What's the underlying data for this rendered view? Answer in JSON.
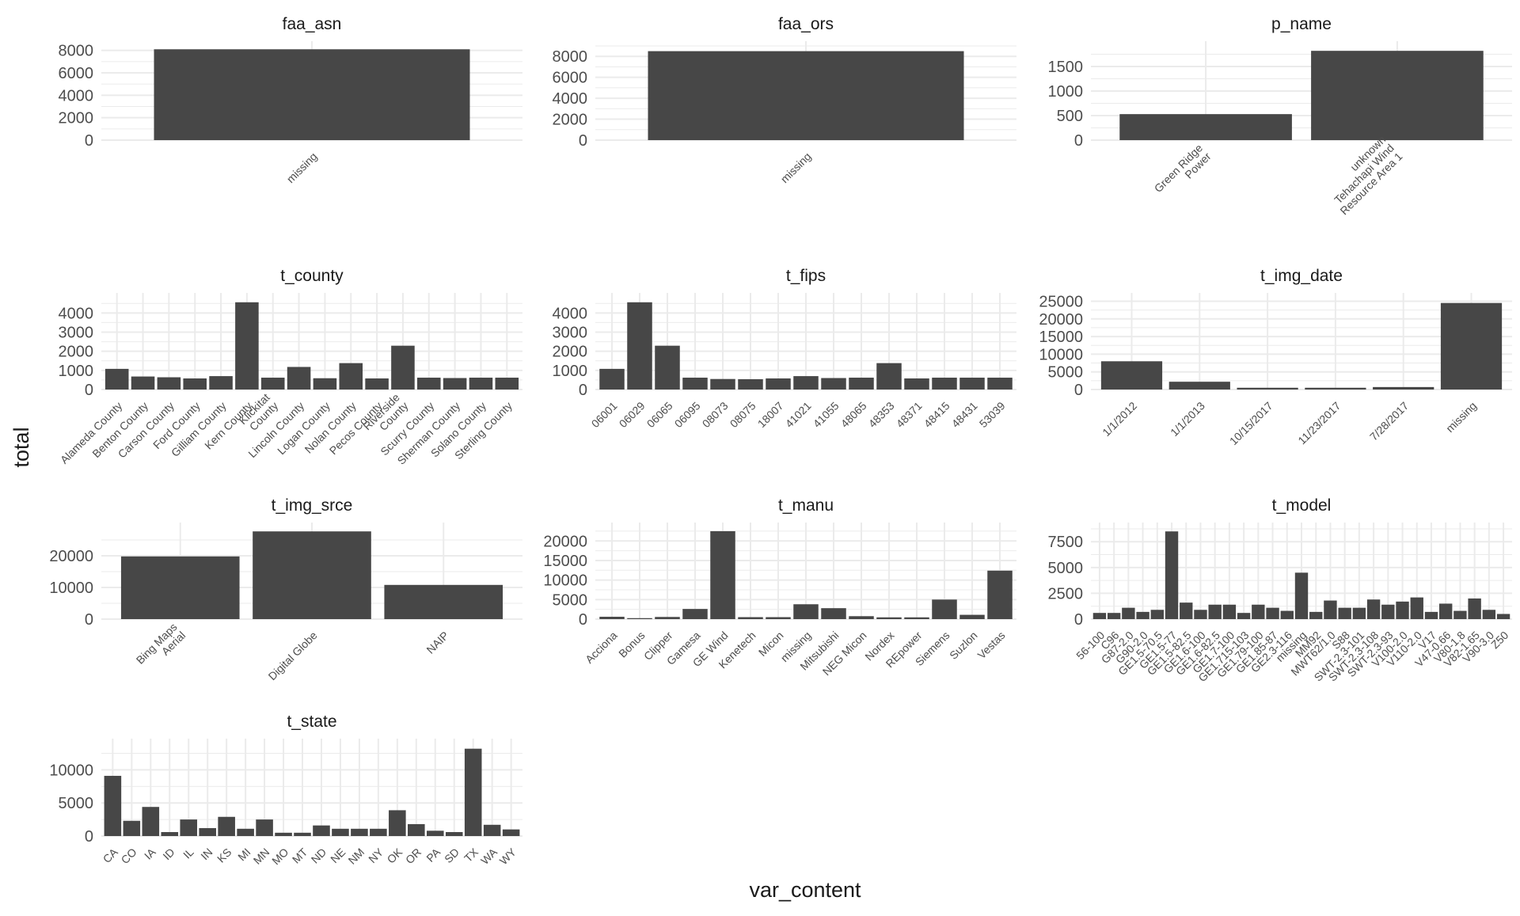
{
  "figure": {
    "xlabel": "var_content",
    "ylabel": "total",
    "bar_color": "#474747",
    "grid_color": "#ebebeb",
    "background": "#ffffff"
  },
  "chart_data": [
    {
      "type": "bar",
      "title": "faa_asn",
      "categories": [
        "missing"
      ],
      "values": [
        8100
      ],
      "ylim": [
        0,
        8400
      ],
      "yticks": [
        0,
        2000,
        4000,
        6000,
        8000
      ],
      "grid": true
    },
    {
      "type": "bar",
      "title": "faa_ors",
      "categories": [
        "missing"
      ],
      "values": [
        8500
      ],
      "ylim": [
        0,
        9000
      ],
      "yticks": [
        0,
        2000,
        4000,
        6000,
        8000
      ],
      "grid": true
    },
    {
      "type": "bar",
      "title": "p_name",
      "categories": [
        "Green Ridge\nPower",
        "unknown\nTehachapi Wind\nResource Area 1"
      ],
      "values": [
        530,
        1820
      ],
      "ylim": [
        0,
        1920
      ],
      "yticks": [
        0,
        500,
        1000,
        1500
      ],
      "grid": true
    },
    {
      "type": "bar",
      "title": "t_county",
      "categories": [
        "Alameda County",
        "Benton County",
        "Carson County",
        "Ford County",
        "Gilliam County",
        "Kern County",
        "Klickitat\nCounty",
        "Lincoln County",
        "Logan County",
        "Nolan County",
        "Pecos County",
        "Riverside\nCounty",
        "Scurry County",
        "Sherman County",
        "Solano County",
        "Sterling County"
      ],
      "values": [
        1080,
        680,
        640,
        580,
        700,
        4560,
        620,
        1180,
        590,
        1380,
        580,
        2290,
        620,
        600,
        620,
        620
      ],
      "ylim": [
        0,
        4800
      ],
      "yticks": [
        0,
        1000,
        2000,
        3000,
        4000
      ],
      "grid": true
    },
    {
      "type": "bar",
      "title": "t_fips",
      "categories": [
        "06001",
        "06029",
        "06065",
        "06095",
        "08073",
        "08075",
        "18007",
        "41021",
        "41055",
        "48065",
        "48353",
        "48371",
        "48415",
        "48431",
        "53039"
      ],
      "values": [
        1080,
        4560,
        2290,
        620,
        550,
        540,
        580,
        700,
        600,
        620,
        1380,
        580,
        620,
        620,
        620
      ],
      "ylim": [
        0,
        4800
      ],
      "yticks": [
        0,
        1000,
        2000,
        3000,
        4000
      ],
      "grid": true
    },
    {
      "type": "bar",
      "title": "t_img_date",
      "categories": [
        "1/1/2012",
        "1/1/2013",
        "10/15/2017",
        "11/23/2017",
        "7/28/2017",
        "missing"
      ],
      "values": [
        8000,
        2200,
        500,
        500,
        700,
        24500
      ],
      "ylim": [
        0,
        26000
      ],
      "yticks": [
        0,
        5000,
        10000,
        15000,
        20000,
        25000
      ],
      "grid": true
    },
    {
      "type": "bar",
      "title": "t_img_srce",
      "categories": [
        "Bing Maps\nAerial",
        "Digital Globe",
        "NAIP"
      ],
      "values": [
        19800,
        27700,
        10800
      ],
      "ylim": [
        0,
        29000
      ],
      "yticks": [
        0,
        10000,
        20000
      ],
      "grid": true
    },
    {
      "type": "bar",
      "title": "t_manu",
      "categories": [
        "Acciona",
        "Bonus",
        "Clipper",
        "Gamesa",
        "GE Wind",
        "Kenetech",
        "Micon",
        "missing",
        "Mitsubishi",
        "NEG Micon",
        "Nordex",
        "REpower",
        "Siemens",
        "Suzlon",
        "Vestas"
      ],
      "values": [
        600,
        250,
        550,
        2600,
        22500,
        500,
        500,
        3800,
        2800,
        750,
        450,
        450,
        5000,
        1100,
        12400
      ],
      "ylim": [
        0,
        23500
      ],
      "yticks": [
        0,
        5000,
        10000,
        15000,
        20000
      ],
      "grid": true
    },
    {
      "type": "bar",
      "title": "t_model",
      "categories": [
        "56-100",
        "C96",
        "G87-2.0",
        "G90-2.0",
        "GE1.5-70.5",
        "GE1.5-77",
        "GE1.5-82.5",
        "GE1.6-100",
        "GE1.6-82.5",
        "GE1.7-100",
        "GE1.715-103",
        "GE1.79-100",
        "GE1.85-87",
        "GE2.3-116",
        "missing",
        "MM92",
        "MWT62/1.0",
        "S88",
        "SWT-2.3-101",
        "SWT-2.3-108",
        "SWT-2.3-93",
        "V100-2.0",
        "V110-2.0",
        "V17",
        "V47-0.66",
        "V80-1.8",
        "V82-1.65",
        "V90-3.0",
        "Z50"
      ],
      "values": [
        600,
        600,
        1100,
        700,
        900,
        8500,
        1600,
        900,
        1400,
        1400,
        600,
        1400,
        1100,
        800,
        4500,
        700,
        1800,
        1100,
        1100,
        1900,
        1400,
        1700,
        2100,
        700,
        1500,
        800,
        2000,
        900,
        500
      ],
      "ylim": [
        0,
        8900
      ],
      "yticks": [
        0,
        2500,
        5000,
        7500
      ],
      "tick_labels_shown": [
        "56-100",
        "C96",
        "G87-2.0",
        "G90-2.0",
        "GE1.5-70.5",
        "GE1.5-77",
        "GE1.5-82.5",
        "GE1.6-100",
        "GE1.6-82.5",
        "GE1.7-100",
        "GE1.715-103",
        "GE1.79-100",
        "GE1.85-87",
        "GE2.3-116",
        "missing",
        "MM92",
        "MWT62/1.0",
        "S88",
        "SWT-2.3-101",
        "SWT-2.3-108",
        "SWT-2.3-93",
        "V100-2.0",
        "V110-2.0",
        "V17",
        "V47-0.66",
        "V80-1.8",
        "V82-1.65",
        "V90-3.0",
        "Z50"
      ],
      "grid": true
    },
    {
      "type": "bar",
      "title": "t_state",
      "categories": [
        "CA",
        "CO",
        "IA",
        "ID",
        "IL",
        "IN",
        "KS",
        "MI",
        "MN",
        "MO",
        "MT",
        "ND",
        "NE",
        "NM",
        "NY",
        "OK",
        "OR",
        "PA",
        "SD",
        "TX",
        "WA",
        "WY"
      ],
      "values": [
        9100,
        2300,
        4400,
        600,
        2500,
        1200,
        2900,
        1100,
        2500,
        500,
        500,
        1600,
        1100,
        1100,
        1100,
        3900,
        1800,
        800,
        600,
        13200,
        1700,
        1000
      ],
      "ylim": [
        0,
        14000
      ],
      "yticks": [
        0,
        5000,
        10000
      ],
      "grid": true
    }
  ]
}
